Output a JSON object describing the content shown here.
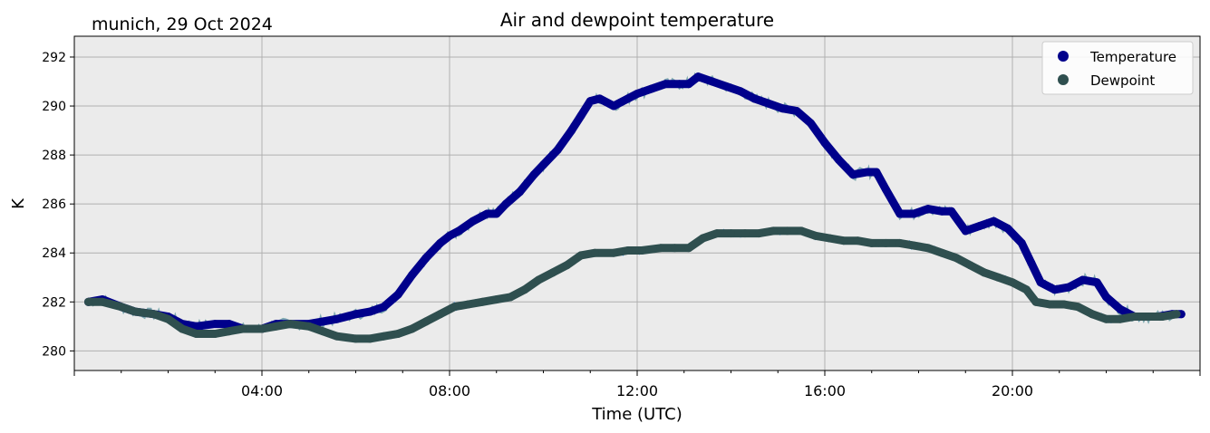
{
  "chart_data": {
    "type": "line",
    "title": "Air and dewpoint temperature",
    "subtitle": "munich, 29 Oct 2024",
    "xlabel": "Time (UTC)",
    "ylabel": "K",
    "xlim": [
      0,
      24
    ],
    "ylim": [
      279.2,
      292.85
    ],
    "x_ticks": [
      {
        "value": 4,
        "label": "04:00"
      },
      {
        "value": 8,
        "label": "08:00"
      },
      {
        "value": 12,
        "label": "12:00"
      },
      {
        "value": 16,
        "label": "16:00"
      },
      {
        "value": 20,
        "label": "20:00"
      }
    ],
    "y_ticks": [
      280,
      282,
      284,
      286,
      288,
      290,
      292
    ],
    "grid": true,
    "background": "#ebebeb",
    "legend_position": "top-right",
    "series": [
      {
        "name": "Temperature",
        "color": "#00008b",
        "raw_color": "#7fa9b0",
        "x": [
          0.3,
          0.6,
          1.0,
          1.3,
          1.7,
          2.0,
          2.3,
          2.6,
          3.0,
          3.3,
          3.6,
          4.0,
          4.3,
          4.6,
          5.0,
          5.3,
          5.6,
          6.0,
          6.3,
          6.6,
          6.9,
          7.2,
          7.5,
          7.8,
          8.0,
          8.2,
          8.5,
          8.8,
          9.0,
          9.2,
          9.5,
          9.8,
          10.0,
          10.3,
          10.6,
          10.8,
          11.0,
          11.2,
          11.5,
          11.8,
          12.0,
          12.3,
          12.6,
          12.9,
          13.1,
          13.3,
          13.6,
          13.9,
          14.2,
          14.5,
          14.8,
          15.1,
          15.4,
          15.7,
          16.0,
          16.3,
          16.6,
          16.9,
          17.1,
          17.3,
          17.6,
          17.9,
          18.2,
          18.5,
          18.7,
          19.0,
          19.3,
          19.6,
          19.9,
          20.2,
          20.4,
          20.6,
          20.9,
          21.2,
          21.5,
          21.8,
          22.0,
          22.3,
          22.6,
          22.8,
          23.1,
          23.4,
          23.6
        ],
        "y": [
          282.0,
          282.1,
          281.8,
          281.6,
          281.5,
          281.4,
          281.1,
          281.0,
          281.1,
          281.1,
          280.9,
          280.9,
          281.1,
          281.1,
          281.1,
          281.2,
          281.3,
          281.5,
          281.6,
          281.8,
          282.3,
          283.1,
          283.8,
          284.4,
          284.7,
          284.9,
          285.3,
          285.6,
          285.6,
          286.0,
          286.5,
          287.2,
          287.6,
          288.2,
          289.0,
          289.6,
          290.2,
          290.3,
          290.0,
          290.3,
          290.5,
          290.7,
          290.9,
          290.9,
          290.9,
          291.2,
          291.0,
          290.8,
          290.6,
          290.3,
          290.1,
          289.9,
          289.8,
          289.3,
          288.5,
          287.8,
          287.2,
          287.3,
          287.3,
          286.6,
          285.6,
          285.6,
          285.8,
          285.7,
          285.7,
          284.9,
          285.1,
          285.3,
          285.0,
          284.4,
          283.6,
          282.8,
          282.5,
          282.6,
          282.9,
          282.8,
          282.2,
          281.7,
          281.4,
          281.4,
          281.4,
          281.5,
          281.5
        ]
      },
      {
        "name": "Dewpoint",
        "color": "#2f4f4f",
        "raw_color": "#1e90ff",
        "x": [
          0.3,
          0.6,
          1.0,
          1.3,
          1.7,
          2.0,
          2.3,
          2.6,
          3.0,
          3.3,
          3.6,
          4.0,
          4.3,
          4.6,
          5.0,
          5.3,
          5.6,
          6.0,
          6.3,
          6.6,
          6.9,
          7.2,
          7.5,
          7.8,
          8.1,
          8.4,
          8.7,
          9.0,
          9.3,
          9.6,
          9.9,
          10.2,
          10.5,
          10.8,
          11.1,
          11.5,
          11.8,
          12.1,
          12.5,
          12.8,
          13.1,
          13.4,
          13.7,
          14.0,
          14.3,
          14.6,
          14.9,
          15.2,
          15.5,
          15.8,
          16.1,
          16.4,
          16.7,
          17.0,
          17.3,
          17.6,
          17.9,
          18.2,
          18.5,
          18.8,
          19.1,
          19.4,
          19.7,
          20.0,
          20.3,
          20.5,
          20.8,
          21.1,
          21.4,
          21.7,
          22.0,
          22.3,
          22.6,
          22.9,
          23.2,
          23.5
        ],
        "y": [
          282.0,
          282.0,
          281.8,
          281.6,
          281.5,
          281.3,
          280.9,
          280.7,
          280.7,
          280.8,
          280.9,
          280.9,
          281.0,
          281.1,
          281.0,
          280.8,
          280.6,
          280.5,
          280.5,
          280.6,
          280.7,
          280.9,
          281.2,
          281.5,
          281.8,
          281.9,
          282.0,
          282.1,
          282.2,
          282.5,
          282.9,
          283.2,
          283.5,
          283.9,
          284.0,
          284.0,
          284.1,
          284.1,
          284.2,
          284.2,
          284.2,
          284.6,
          284.8,
          284.8,
          284.8,
          284.8,
          284.9,
          284.9,
          284.9,
          284.7,
          284.6,
          284.5,
          284.5,
          284.4,
          284.4,
          284.4,
          284.3,
          284.2,
          284.0,
          283.8,
          283.5,
          283.2,
          283.0,
          282.8,
          282.5,
          282.0,
          281.9,
          281.9,
          281.8,
          281.5,
          281.3,
          281.3,
          281.4,
          281.4,
          281.4,
          281.5
        ]
      }
    ]
  }
}
